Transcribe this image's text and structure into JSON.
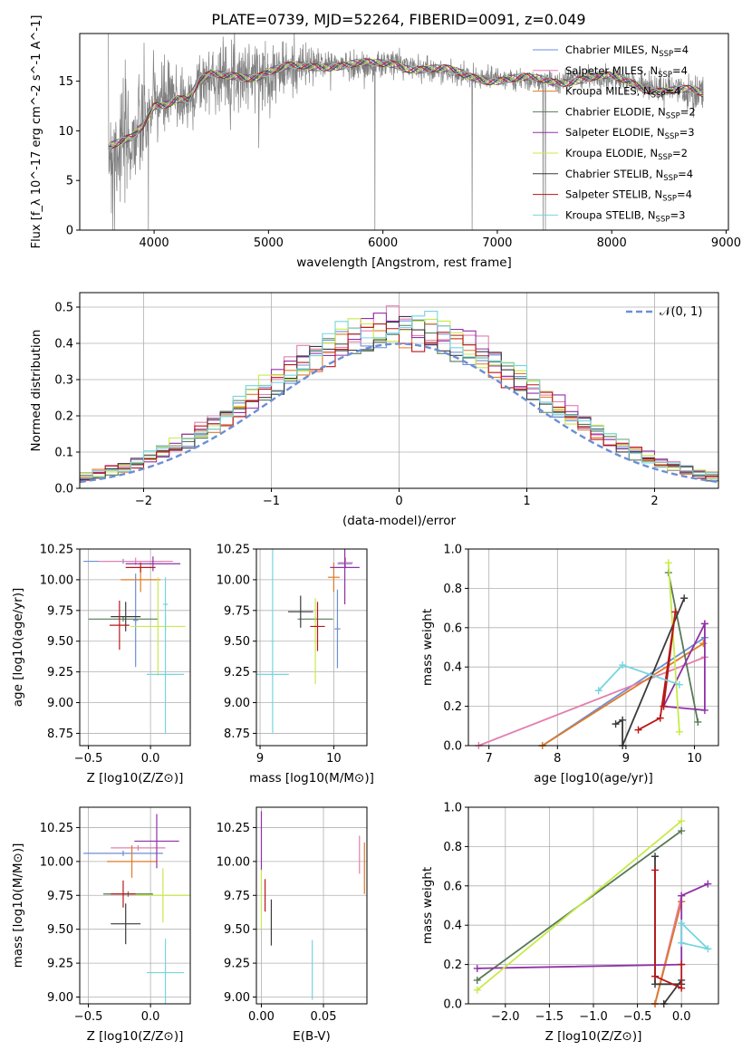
{
  "figure": {
    "title": "PLATE=0739, MJD=52264, FIBERID=0091, z=0.049"
  },
  "palette": {
    "Chabrier MILES": "#6b8fd6",
    "Salpeter MILES": "#e37faf",
    "Kroupa MILES": "#e07a26",
    "Chabrier ELODIE": "#567a56",
    "Salpeter ELODIE": "#9030a8",
    "Kroupa ELODIE": "#c8ea4a",
    "Chabrier STELIB": "#3a3a3a",
    "Salpeter STELIB": "#b81818",
    "Kroupa STELIB": "#76d5de",
    "data": "#808080",
    "normal": "#6a8fd6"
  },
  "chart_data": [
    {
      "id": "spectrum",
      "type": "line",
      "title": "PLATE=0739, MJD=52264, FIBERID=0091, z=0.049",
      "xlabel": "wavelength [Angstrom, rest frame]",
      "ylabel": "Flux [f_λ 10^-17 erg cm^-2 s^-1 A^-1]",
      "xlim": [
        3350,
        9020
      ],
      "ylim": [
        0,
        19.8
      ],
      "xticks": [
        4000,
        5000,
        6000,
        7000,
        8000,
        9000
      ],
      "yticks": [
        0,
        5,
        10,
        15
      ],
      "grid": false,
      "legend_position": "right",
      "legend": [
        {
          "model": "Chabrier MILES",
          "nssp": "4"
        },
        {
          "model": "Salpeter MILES",
          "nssp": "4"
        },
        {
          "model": "Kroupa MILES",
          "nssp": "4"
        },
        {
          "model": "Chabrier ELODIE",
          "nssp": "2"
        },
        {
          "model": "Salpeter ELODIE",
          "nssp": "3"
        },
        {
          "model": "Kroupa ELODIE",
          "nssp": "2"
        },
        {
          "model": "Chabrier STELIB",
          "nssp": "4"
        },
        {
          "model": "Salpeter STELIB",
          "nssp": "4"
        },
        {
          "model": "Kroupa STELIB",
          "nssp": "3"
        }
      ],
      "continuum": {
        "x": [
          3600,
          3700,
          3800,
          3900,
          4000,
          4100,
          4200,
          4300,
          4400,
          4500,
          4700,
          4900,
          5100,
          5300,
          5500,
          5700,
          5900,
          6100,
          6300,
          6500,
          6700,
          6900,
          7100,
          7300,
          7500,
          7700,
          7900,
          8100,
          8300,
          8500,
          8700,
          8800
        ],
        "y": [
          8.2,
          8.5,
          9.0,
          10.5,
          12.8,
          13.0,
          13.4,
          13.0,
          14.8,
          15.4,
          15.8,
          15.6,
          16.0,
          16.5,
          16.8,
          16.6,
          16.5,
          16.9,
          16.4,
          16.0,
          15.6,
          15.4,
          15.2,
          15.0,
          15.0,
          15.4,
          15.3,
          15.0,
          14.5,
          14.1,
          13.8,
          13.5
        ]
      },
      "noise_amplitude": {
        "x": [
          3600,
          4000,
          4300,
          4500,
          5000,
          5500,
          6000,
          6500,
          7000,
          7500,
          8000,
          8500,
          8800
        ],
        "y": [
          6.0,
          4.0,
          3.0,
          2.8,
          3.2,
          1.2,
          1.4,
          1.0,
          0.9,
          0.9,
          1.0,
          1.3,
          1.6
        ]
      },
      "spikes_down": [
        3640,
        3655,
        3950,
        5930,
        6780,
        7400,
        7420
      ]
    },
    {
      "id": "residuals",
      "type": "bar",
      "xlabel": "(data-model)/error",
      "ylabel": "Normed distribution",
      "xlim": [
        -2.5,
        2.5
      ],
      "ylim": [
        0,
        0.54
      ],
      "xticks": [
        -2,
        -1,
        0,
        1,
        2
      ],
      "yticks": [
        0.0,
        0.1,
        0.2,
        0.3,
        0.4,
        0.5
      ],
      "grid": true,
      "bin_width": 0.1,
      "legend": [
        {
          "label": "𝒩(0, 1)",
          "style": "dashed"
        }
      ],
      "legend_position": "top-right"
    },
    {
      "id": "age-vs-Z",
      "type": "scatter",
      "xlabel": "Z [log10(Z/Z⊙)]",
      "ylabel": "age  [log10(age/yr)]",
      "xlim": [
        -0.57,
        0.32
      ],
      "ylim": [
        8.65,
        10.25
      ],
      "xticks": [
        -0.5,
        0.0
      ],
      "yticks": [
        8.75,
        9.0,
        9.25,
        9.5,
        9.75,
        10.0,
        10.25
      ],
      "grid": true,
      "points": [
        {
          "model": "Chabrier MILES",
          "x": -0.22,
          "xerr": 0.32,
          "y": 10.15,
          "yerr": 0.02
        },
        {
          "model": "Chabrier MILES",
          "x": -0.12,
          "xerr": 0.02,
          "y": 9.67,
          "yerr": 0.38
        },
        {
          "model": "Salpeter MILES",
          "x": -0.12,
          "xerr": 0.3,
          "y": 10.15,
          "yerr": 0.03
        },
        {
          "model": "Kroupa MILES",
          "x": -0.08,
          "xerr": 0.16,
          "y": 10.0,
          "yerr": 0.1
        },
        {
          "model": "Chabrier ELODIE",
          "x": -0.22,
          "xerr": 0.28,
          "y": 9.68,
          "yerr": 0.02
        },
        {
          "model": "Salpeter ELODIE",
          "x": 0.02,
          "xerr": 0.22,
          "y": 10.13,
          "yerr": 0.06
        },
        {
          "model": "Kroupa ELODIE",
          "x": 0.06,
          "xerr": 0.22,
          "y": 9.62,
          "yerr": 0.4
        },
        {
          "model": "Chabrier STELIB",
          "x": -0.2,
          "xerr": 0.12,
          "y": 9.7,
          "yerr": 0.12
        },
        {
          "model": "Salpeter STELIB",
          "x": -0.25,
          "xerr": 0.08,
          "y": 9.63,
          "yerr": 0.2
        },
        {
          "model": "Salpeter STELIB",
          "x": -0.08,
          "xerr": 0.12,
          "y": 10.1,
          "yerr": 0.04
        },
        {
          "model": "Kroupa STELIB",
          "x": 0.12,
          "xerr": 0.15,
          "y": 9.23,
          "yerr": 0.48
        },
        {
          "model": "Kroupa STELIB",
          "x": 0.12,
          "xerr": 0.02,
          "y": 9.8,
          "yerr": 0.22
        }
      ]
    },
    {
      "id": "age-vs-mass",
      "type": "scatter",
      "xlabel": "mass [log10(M/M⊙)]",
      "xlim": [
        8.95,
        10.45
      ],
      "ylim": [
        8.65,
        10.25
      ],
      "xticks": [
        9,
        10
      ],
      "yticks": [
        8.75,
        9.0,
        9.25,
        9.5,
        9.75,
        10.0,
        10.25
      ],
      "grid": true,
      "points": [
        {
          "model": "Chabrier MILES",
          "x": 10.05,
          "xerr": 0.04,
          "y": 9.6,
          "yerr": 0.32
        },
        {
          "model": "Chabrier MILES",
          "x": 10.15,
          "xerr": 0.1,
          "y": 10.13,
          "yerr": 0.03
        },
        {
          "model": "Salpeter MILES",
          "x": 10.16,
          "xerr": 0.1,
          "y": 10.14,
          "yerr": 0.04
        },
        {
          "model": "Kroupa MILES",
          "x": 10.0,
          "xerr": 0.08,
          "y": 10.02,
          "yerr": 0.12
        },
        {
          "model": "Chabrier ELODIE",
          "x": 9.75,
          "xerr": 0.24,
          "y": 9.68,
          "yerr": 0.02
        },
        {
          "model": "Salpeter ELODIE",
          "x": 10.15,
          "xerr": 0.2,
          "y": 10.1,
          "yerr": 0.3
        },
        {
          "model": "Kroupa ELODIE",
          "x": 9.75,
          "xerr": 0.02,
          "y": 9.5,
          "yerr": 0.35
        },
        {
          "model": "Chabrier STELIB",
          "x": 9.55,
          "xerr": 0.17,
          "y": 9.74,
          "yerr": 0.13
        },
        {
          "model": "Salpeter STELIB",
          "x": 9.78,
          "xerr": 0.1,
          "y": 9.62,
          "yerr": 0.2
        },
        {
          "model": "Kroupa STELIB",
          "x": 9.17,
          "xerr": 0.22,
          "y": 9.23,
          "yerr": 0.02
        },
        {
          "model": "Kroupa STELIB",
          "x": 9.17,
          "xerr": 0.02,
          "y": 9.5,
          "yerr": 0.75
        }
      ]
    },
    {
      "id": "weight-vs-age",
      "type": "line",
      "xlabel": "age  [log10(age/yr)]",
      "ylabel": "mass weight",
      "xlim": [
        6.7,
        10.35
      ],
      "ylim": [
        0,
        1.0
      ],
      "xticks": [
        7,
        8,
        9,
        10
      ],
      "yticks": [
        0.0,
        0.2,
        0.4,
        0.6,
        0.8,
        1.0
      ],
      "grid": true,
      "series": [
        {
          "model": "Chabrier MILES",
          "x": [
            7.78,
            10.15
          ],
          "y": [
            0.0,
            0.55
          ]
        },
        {
          "model": "Salpeter MILES",
          "x": [
            6.85,
            10.15
          ],
          "y": [
            0.0,
            0.45
          ]
        },
        {
          "model": "Kroupa MILES",
          "x": [
            7.78,
            10.13
          ],
          "y": [
            0.0,
            0.52
          ]
        },
        {
          "model": "Chabrier ELODIE",
          "x": [
            9.62,
            10.05
          ],
          "y": [
            0.88,
            0.12
          ]
        },
        {
          "model": "Salpeter ELODIE",
          "x": [
            10.15,
            9.55,
            10.15,
            10.15
          ],
          "y": [
            0.62,
            0.2,
            0.18,
            0.62
          ]
        },
        {
          "model": "Kroupa ELODIE",
          "x": [
            9.62,
            9.78
          ],
          "y": [
            0.93,
            0.07
          ]
        },
        {
          "model": "Chabrier STELIB",
          "x": [
            8.85,
            8.95,
            8.95,
            9.85
          ],
          "y": [
            0.11,
            0.13,
            0.0,
            0.75
          ]
        },
        {
          "model": "Salpeter STELIB",
          "x": [
            9.18,
            9.5,
            9.72,
            9.55
          ],
          "y": [
            0.08,
            0.14,
            0.68,
            0.2
          ]
        },
        {
          "model": "Kroupa STELIB",
          "x": [
            8.6,
            8.95,
            9.78
          ],
          "y": [
            0.28,
            0.41,
            0.31
          ]
        }
      ]
    },
    {
      "id": "mass-vs-Z",
      "type": "scatter",
      "xlabel": "Z [log10(Z/Z⊙)]",
      "ylabel": "mass [log10(M/M⊙)]",
      "xlim": [
        -0.57,
        0.32
      ],
      "ylim": [
        8.95,
        10.4
      ],
      "xticks": [
        -0.5,
        0.0
      ],
      "yticks": [
        9.0,
        9.25,
        9.5,
        9.75,
        10.0,
        10.25
      ],
      "grid": true,
      "points": [
        {
          "model": "Chabrier MILES",
          "x": -0.22,
          "xerr": 0.32,
          "y": 10.06,
          "yerr": 0.02
        },
        {
          "model": "Salpeter MILES",
          "x": -0.1,
          "xerr": 0.22,
          "y": 10.1,
          "yerr": 0.02
        },
        {
          "model": "Kroupa MILES",
          "x": -0.15,
          "xerr": 0.2,
          "y": 10.0,
          "yerr": 0.12
        },
        {
          "model": "Chabrier ELODIE",
          "x": -0.18,
          "xerr": 0.2,
          "y": 9.76,
          "yerr": 0.02
        },
        {
          "model": "Salpeter ELODIE",
          "x": 0.05,
          "xerr": 0.18,
          "y": 10.15,
          "yerr": 0.2
        },
        {
          "model": "Kroupa ELODIE",
          "x": 0.1,
          "xerr": 0.22,
          "y": 9.75,
          "yerr": 0.2
        },
        {
          "model": "Chabrier STELIB",
          "x": -0.2,
          "xerr": 0.12,
          "y": 9.54,
          "yerr": 0.15
        },
        {
          "model": "Salpeter STELIB",
          "x": -0.22,
          "xerr": 0.1,
          "y": 9.76,
          "yerr": 0.1
        },
        {
          "model": "Kroupa STELIB",
          "x": 0.12,
          "xerr": 0.15,
          "y": 9.18,
          "yerr": 0.25
        }
      ]
    },
    {
      "id": "mass-vs-EBV",
      "type": "scatter",
      "xlabel": "E(B-V)",
      "xlim": [
        -0.004,
        0.085
      ],
      "ylim": [
        8.95,
        10.4
      ],
      "xticks": [
        0.0,
        0.05
      ],
      "yticks": [
        9.0,
        9.25,
        9.5,
        9.75,
        10.0,
        10.25
      ],
      "grid": true,
      "points": [
        {
          "model": "Salpeter ELODIE",
          "x": 0.0,
          "y": 10.15,
          "yerr": 0.22
        },
        {
          "model": "Kroupa ELODIE",
          "x": 0.0,
          "y": 9.72,
          "yerr": 0.22
        },
        {
          "model": "Salpeter STELIB",
          "x": 0.003,
          "y": 9.75,
          "yerr": 0.12
        },
        {
          "model": "Chabrier STELIB",
          "x": 0.008,
          "y": 9.55,
          "yerr": 0.17
        },
        {
          "model": "Kroupa STELIB",
          "x": 0.041,
          "y": 9.2,
          "yerr": 0.22
        },
        {
          "model": "Salpeter MILES",
          "x": 0.079,
          "y": 10.05,
          "yerr": 0.14
        },
        {
          "model": "Kroupa MILES",
          "x": 0.083,
          "y": 9.95,
          "yerr": 0.19
        }
      ]
    },
    {
      "id": "weight-vs-Z",
      "type": "line",
      "xlabel": "Z [log10(Z/Z⊙)]",
      "ylabel": "mass weight",
      "xlim": [
        -2.42,
        0.42
      ],
      "ylim": [
        0,
        1.0
      ],
      "xticks": [
        -2.0,
        -1.5,
        -1.0,
        -0.5,
        0.0
      ],
      "yticks": [
        0.0,
        0.2,
        0.4,
        0.6,
        0.8,
        1.0
      ],
      "grid": true,
      "series": [
        {
          "model": "Chabrier MILES",
          "x": [
            -0.3,
            0.0
          ],
          "y": [
            0.0,
            0.52
          ]
        },
        {
          "model": "Salpeter MILES",
          "x": [
            -0.3,
            0.0
          ],
          "y": [
            0.0,
            0.55
          ]
        },
        {
          "model": "Kroupa MILES",
          "x": [
            -0.3,
            0.0
          ],
          "y": [
            0.0,
            0.52
          ]
        },
        {
          "model": "Chabrier ELODIE",
          "x": [
            -2.32,
            0.0
          ],
          "y": [
            0.12,
            0.88
          ]
        },
        {
          "model": "Salpeter ELODIE",
          "x": [
            -2.32,
            0.0,
            0.0,
            0.3
          ],
          "y": [
            0.18,
            0.2,
            0.55,
            0.61
          ]
        },
        {
          "model": "Kroupa ELODIE",
          "x": [
            -2.32,
            0.0
          ],
          "y": [
            0.07,
            0.93
          ]
        },
        {
          "model": "Chabrier STELIB",
          "x": [
            -0.3,
            -0.3,
            0.0,
            0.0,
            -0.2
          ],
          "y": [
            0.75,
            0.1,
            0.1,
            0.12,
            0.0
          ]
        },
        {
          "model": "Salpeter STELIB",
          "x": [
            -0.3,
            -0.3,
            0.0,
            0.0
          ],
          "y": [
            0.68,
            0.14,
            0.08,
            0.2
          ]
        },
        {
          "model": "Kroupa STELIB",
          "x": [
            0.0,
            0.3,
            0.0,
            0.0
          ],
          "y": [
            0.31,
            0.28,
            0.41,
            0.31
          ]
        }
      ]
    }
  ]
}
